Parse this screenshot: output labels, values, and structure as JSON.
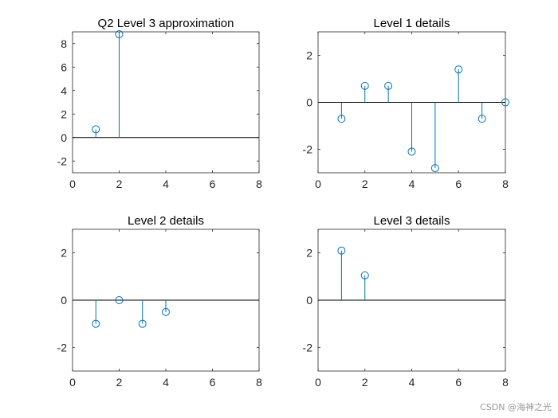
{
  "watermark": "CSDN @海神之光",
  "chart_data": [
    {
      "type": "stem",
      "title": "Q2 Level 3 approximation",
      "xlim": [
        0,
        8
      ],
      "ylim": [
        -3,
        9
      ],
      "xticks": [
        0,
        2,
        4,
        6,
        8
      ],
      "yticks": [
        -2,
        0,
        2,
        4,
        6,
        8
      ],
      "x": [
        1,
        2
      ],
      "y": [
        0.7,
        8.8
      ],
      "color": "#0072BD"
    },
    {
      "type": "stem",
      "title": "Level 1 details",
      "xlim": [
        0,
        8
      ],
      "ylim": [
        -3,
        3
      ],
      "xticks": [
        0,
        2,
        4,
        6,
        8
      ],
      "yticks": [
        -2,
        0,
        2
      ],
      "x": [
        1,
        2,
        3,
        4,
        5,
        6,
        7,
        8
      ],
      "y": [
        -0.7,
        0.7,
        0.7,
        -2.1,
        -2.8,
        1.4,
        -0.7,
        0.0
      ],
      "color": "#0072BD"
    },
    {
      "type": "stem",
      "title": "Level 2 details",
      "xlim": [
        0,
        8
      ],
      "ylim": [
        -3,
        3
      ],
      "xticks": [
        0,
        2,
        4,
        6,
        8
      ],
      "yticks": [
        -2,
        0,
        2
      ],
      "x": [
        1,
        2,
        3,
        4
      ],
      "y": [
        -1.0,
        0.0,
        -1.0,
        -0.5
      ],
      "color": "#0072BD"
    },
    {
      "type": "stem",
      "title": "Level 3 details",
      "xlim": [
        0,
        8
      ],
      "ylim": [
        -3,
        3
      ],
      "xticks": [
        0,
        2,
        4,
        6,
        8
      ],
      "yticks": [
        -2,
        0,
        2
      ],
      "x": [
        1,
        2
      ],
      "y": [
        2.1,
        1.05
      ],
      "color": "#0072BD"
    }
  ]
}
